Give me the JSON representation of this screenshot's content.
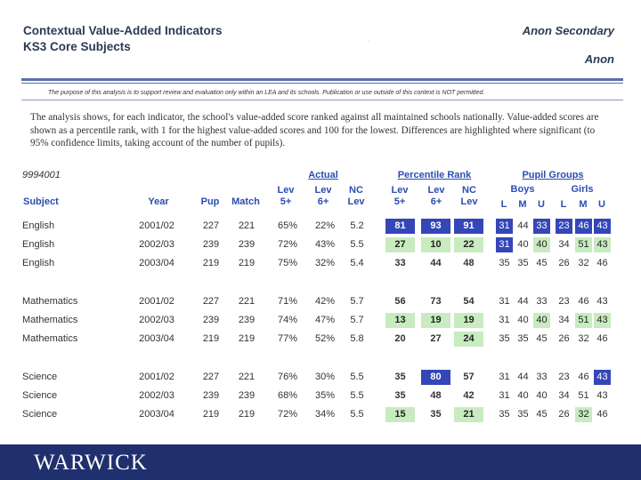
{
  "header": {
    "title_line1": "Contextual Value-Added Indicators",
    "title_line2": "KS3 Core Subjects",
    "school_line1": "Anon Secondary",
    "school_line2": "Anon"
  },
  "disclaimer": "The purpose of this analysis is to support review and evaluation only within an LEA and its schools. Publication or use outside of this context is NOT permitted.",
  "intro": "The analysis shows, for each indicator, the school's value-added score ranked against all maintained schools nationally. Value-added scores are shown as a percentile rank, with 1 for the highest value-added scores and 100 for the lowest. Differences are highlighted where significant (to 95% confidence limits, taking account of the number of pupils).",
  "table": {
    "school_code": "9994001",
    "group_headers": {
      "actual": "Actual",
      "percentile": "Percentile Rank",
      "pupil_groups": "Pupil Groups"
    },
    "sub_groups": {
      "boys": "Boys",
      "girls": "Girls"
    },
    "columns": {
      "subject": "Subject",
      "year": "Year",
      "pup": "Pup",
      "match": "Match",
      "lev5": "Lev 5+",
      "lev6": "Lev 6+",
      "nclev": "NC Lev",
      "r5": "Lev 5+",
      "r6": "Lev 6+",
      "rnc": "NC Lev",
      "bL": "L",
      "bM": "M",
      "bU": "U",
      "gL": "L",
      "gM": "M",
      "gU": "U"
    },
    "rows": [
      {
        "subject": "English",
        "year": "2001/02",
        "pup": "227",
        "match": "221",
        "lev5": "65%",
        "lev6": "22%",
        "nclev": "5.2",
        "r5": "81",
        "r6": "93",
        "rnc": "91",
        "bL": "31",
        "bM": "44",
        "bU": "33",
        "gL": "23",
        "gM": "46",
        "gU": "43"
      },
      {
        "subject": "English",
        "year": "2002/03",
        "pup": "239",
        "match": "239",
        "lev5": "72%",
        "lev6": "43%",
        "nclev": "5.5",
        "r5": "27",
        "r6": "10",
        "rnc": "22",
        "bL": "31",
        "bM": "40",
        "bU": "40",
        "gL": "34",
        "gM": "51",
        "gU": "43"
      },
      {
        "subject": "English",
        "year": "2003/04",
        "pup": "219",
        "match": "219",
        "lev5": "75%",
        "lev6": "32%",
        "nclev": "5.4",
        "r5": "33",
        "r6": "44",
        "rnc": "48",
        "bL": "35",
        "bM": "35",
        "bU": "45",
        "gL": "26",
        "gM": "32",
        "gU": "46"
      },
      {
        "subject": "Mathematics",
        "year": "2001/02",
        "pup": "227",
        "match": "221",
        "lev5": "71%",
        "lev6": "42%",
        "nclev": "5.7",
        "r5": "56",
        "r6": "73",
        "rnc": "54",
        "bL": "31",
        "bM": "44",
        "bU": "33",
        "gL": "23",
        "gM": "46",
        "gU": "43"
      },
      {
        "subject": "Mathematics",
        "year": "2002/03",
        "pup": "239",
        "match": "239",
        "lev5": "74%",
        "lev6": "47%",
        "nclev": "5.7",
        "r5": "13",
        "r6": "19",
        "rnc": "19",
        "bL": "31",
        "bM": "40",
        "bU": "40",
        "gL": "34",
        "gM": "51",
        "gU": "43"
      },
      {
        "subject": "Mathematics",
        "year": "2003/04",
        "pup": "219",
        "match": "219",
        "lev5": "77%",
        "lev6": "52%",
        "nclev": "5.8",
        "r5": "20",
        "r6": "27",
        "rnc": "24",
        "bL": "35",
        "bM": "35",
        "bU": "45",
        "gL": "26",
        "gM": "32",
        "gU": "46"
      },
      {
        "subject": "Science",
        "year": "2001/02",
        "pup": "227",
        "match": "221",
        "lev5": "76%",
        "lev6": "30%",
        "nclev": "5.5",
        "r5": "35",
        "r6": "80",
        "rnc": "57",
        "bL": "31",
        "bM": "44",
        "bU": "33",
        "gL": "23",
        "gM": "46",
        "gU": "43"
      },
      {
        "subject": "Science",
        "year": "2002/03",
        "pup": "239",
        "match": "239",
        "lev5": "68%",
        "lev6": "35%",
        "nclev": "5.5",
        "r5": "35",
        "r6": "48",
        "rnc": "42",
        "bL": "31",
        "bM": "40",
        "bU": "40",
        "gL": "34",
        "gM": "51",
        "gU": "43"
      },
      {
        "subject": "Science",
        "year": "2003/04",
        "pup": "219",
        "match": "219",
        "lev5": "72%",
        "lev6": "34%",
        "nclev": "5.5",
        "r5": "15",
        "r6": "35",
        "rnc": "21",
        "bL": "35",
        "bM": "35",
        "bU": "45",
        "gL": "26",
        "gM": "32",
        "gU": "46"
      }
    ],
    "highlights": {
      "significantly_better": "#c8ebc0",
      "significantly_worse": "#3446b8"
    }
  },
  "footer": {
    "logo_text": "WARWICK",
    "color": "#20306e"
  }
}
